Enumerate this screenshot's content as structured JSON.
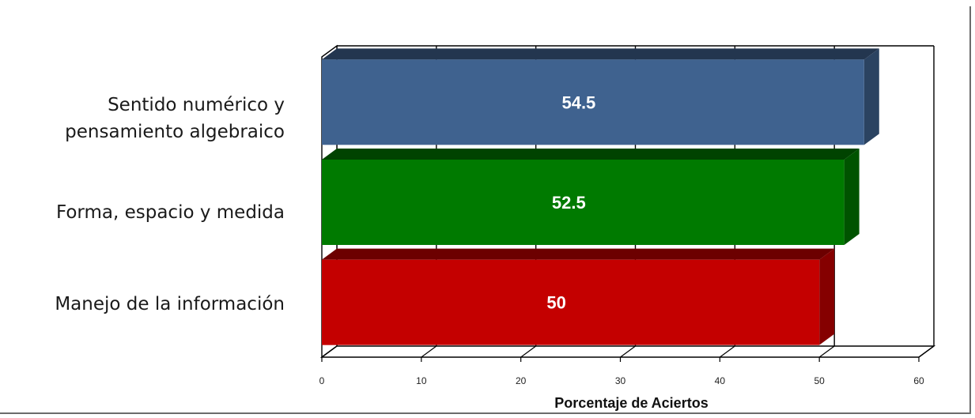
{
  "chart_data": {
    "type": "bar",
    "orientation": "horizontal",
    "style": "3d",
    "categories": [
      "Sentido numérico y\npensamiento algebraico",
      "Forma, espacio y medida",
      "Manejo de la información"
    ],
    "values": [
      54.5,
      52.5,
      50
    ],
    "data_labels": [
      "54.5",
      "52.5",
      "50"
    ],
    "bar_colors": [
      "#3f628f",
      "#007a00",
      "#c40000"
    ],
    "xlabel": "Porcentaje de Aciertos",
    "ylabel": "",
    "xlim": [
      0,
      60
    ],
    "x_ticks": [
      0,
      10,
      20,
      30,
      40,
      50,
      60
    ],
    "grid": "vertical",
    "legend": "none"
  }
}
